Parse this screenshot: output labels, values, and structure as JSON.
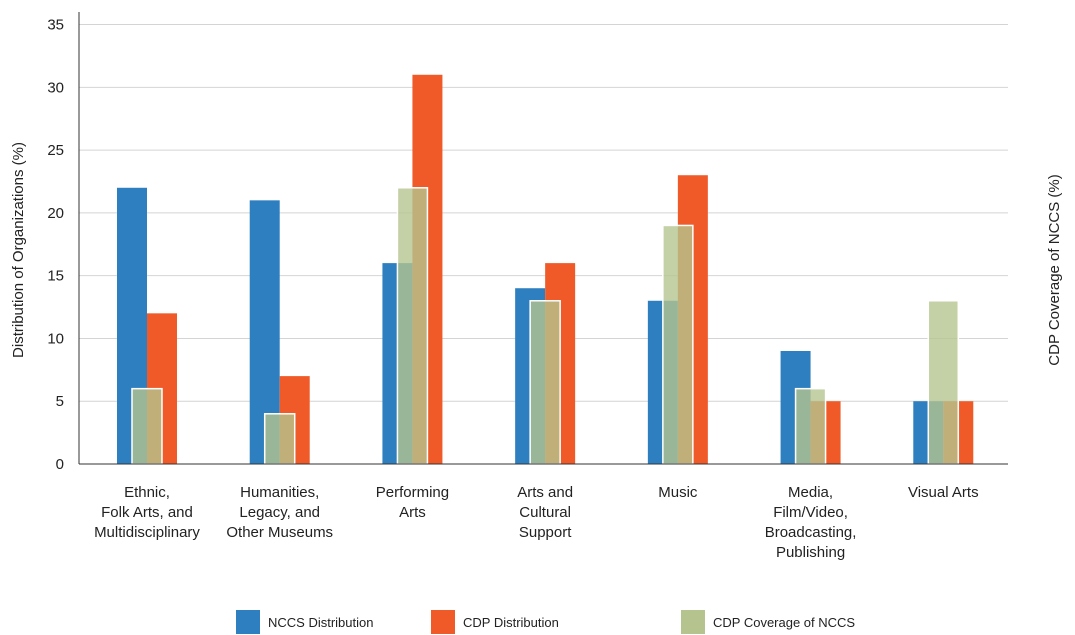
{
  "chart_data": {
    "type": "bar",
    "categories": [
      [
        "Ethnic,",
        "Folk Arts, and",
        "Multidisciplinary"
      ],
      [
        "Humanities,",
        "Legacy, and",
        "Other Museums"
      ],
      [
        "Performing",
        "Arts"
      ],
      [
        "Arts and",
        "Cultural",
        "Support"
      ],
      [
        "Music"
      ],
      [
        "Media,",
        "Film/Video,",
        "Broadcasting,",
        "Publishing"
      ],
      [
        "Visual Arts"
      ]
    ],
    "series": [
      {
        "name": "NCCS Distribution",
        "color": "#2e7fc0",
        "values": [
          22,
          21,
          16,
          14,
          13,
          9,
          5
        ]
      },
      {
        "name": "CDP Distribution",
        "color": "#f05a28",
        "values": [
          12,
          7,
          31,
          16,
          23,
          5,
          5
        ]
      },
      {
        "name": "CDP Coverage of NCCS",
        "color": "#b5c48e",
        "values": [
          6,
          4,
          22,
          13,
          19,
          6,
          13
        ]
      }
    ],
    "ylabel": "Distribution of Organizations (%)",
    "y2label": "CDP Coverage of NCCS (%)",
    "yticks": [
      "0",
      "5",
      "10",
      "15",
      "20",
      "25",
      "30",
      "35"
    ],
    "ylim": [
      0,
      36
    ],
    "grid": true,
    "legend_position": "bottom"
  }
}
